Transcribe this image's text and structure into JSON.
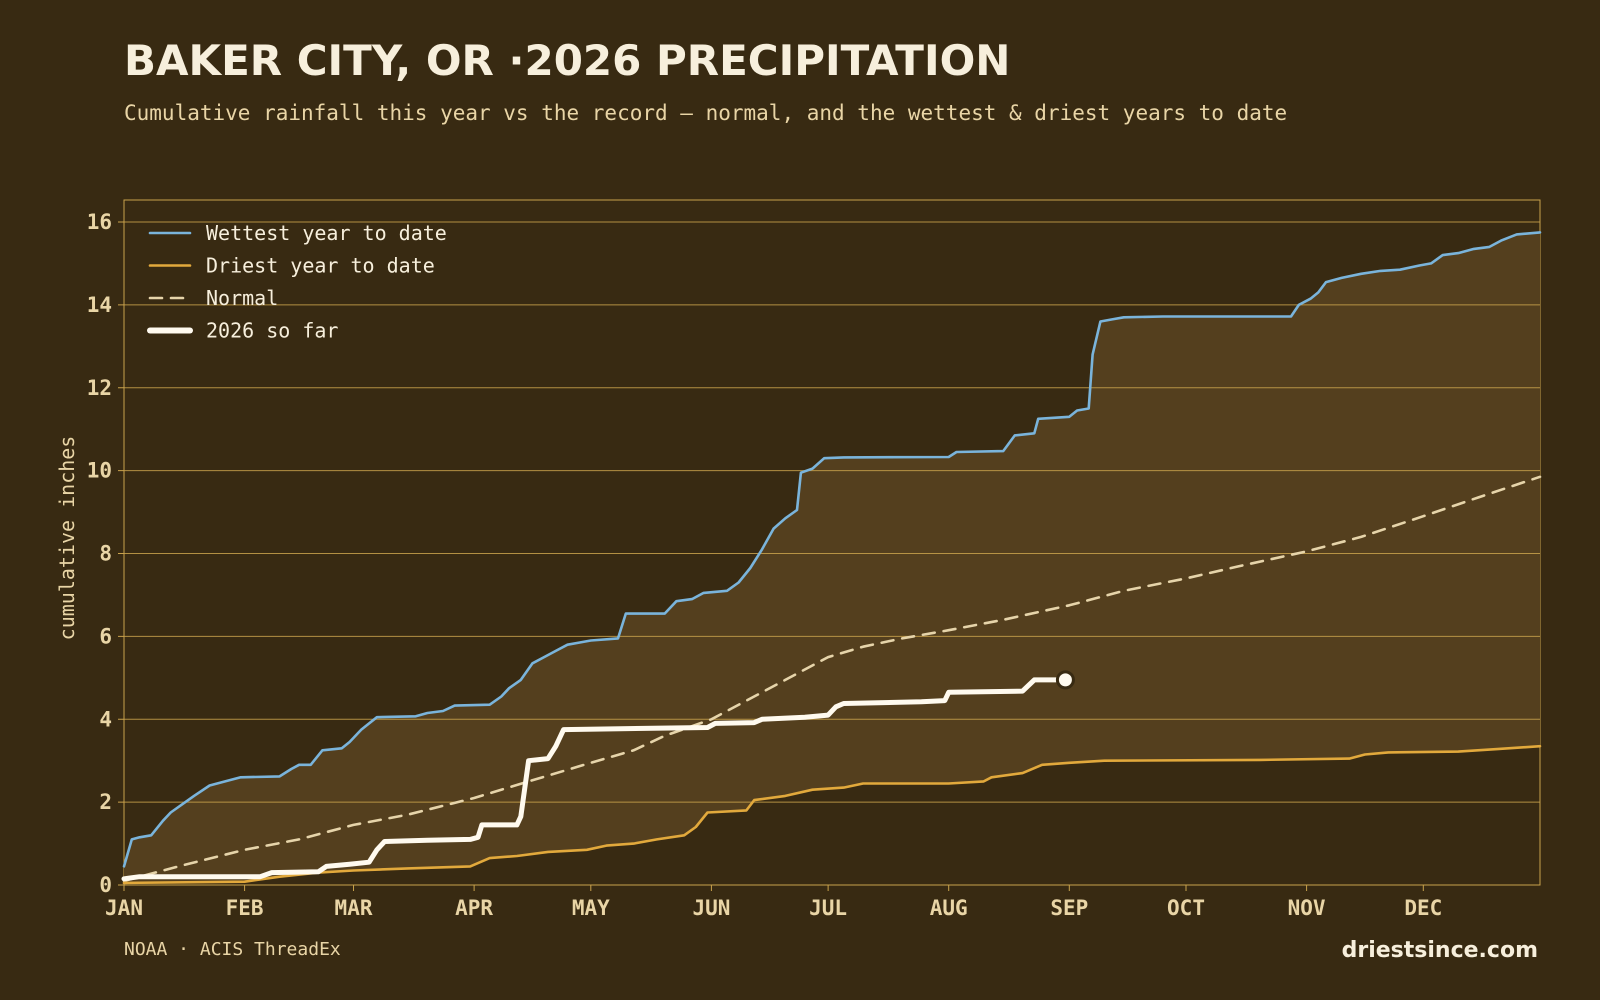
{
  "header": {
    "title": "BAKER CITY, OR ·2026 PRECIPITATION",
    "subtitle": "Cumulative rainfall this year vs the record — normal, and the wettest & driest years to date"
  },
  "footer": {
    "source": "NOAA · ACIS ThreadEx",
    "brand": "driestsince.com"
  },
  "colors": {
    "background": "#382a12",
    "band_fill": "#543f1e",
    "grid": "#c9a24c",
    "wettest": "#7ab4db",
    "driest": "#e2a93c",
    "normal": "#e6d4aa",
    "current": "#fffaef"
  },
  "chart_data": {
    "type": "line",
    "ylabel": "cumulative inches",
    "xlabel": "",
    "ylim": [
      0,
      16
    ],
    "yticks": [
      0,
      2,
      4,
      6,
      8,
      10,
      12,
      14,
      16
    ],
    "xlim": [
      "2026-01-01",
      "2026-12-31"
    ],
    "xticks": [
      {
        "label": "JAN",
        "date": "2026-01-01"
      },
      {
        "label": "FEB",
        "date": "2026-02-01"
      },
      {
        "label": "MAR",
        "date": "2026-03-01"
      },
      {
        "label": "APR",
        "date": "2026-04-01"
      },
      {
        "label": "MAY",
        "date": "2026-05-01"
      },
      {
        "label": "JUN",
        "date": "2026-06-01"
      },
      {
        "label": "JUL",
        "date": "2026-07-01"
      },
      {
        "label": "AUG",
        "date": "2026-08-01"
      },
      {
        "label": "SEP",
        "date": "2026-09-01"
      },
      {
        "label": "OCT",
        "date": "2026-10-01"
      },
      {
        "label": "NOV",
        "date": "2026-11-01"
      },
      {
        "label": "DEC",
        "date": "2026-12-01"
      }
    ],
    "grid": "horizontal",
    "legend_position": "top-left",
    "series": [
      {
        "name": "Wettest year to date",
        "color": "#7ab4db",
        "style": "solid",
        "points": [
          [
            "2026-01-01",
            0.45
          ],
          [
            "2026-01-03",
            1.1
          ],
          [
            "2026-01-05",
            1.15
          ],
          [
            "2026-01-08",
            1.2
          ],
          [
            "2026-01-11",
            1.55
          ],
          [
            "2026-01-13",
            1.75
          ],
          [
            "2026-01-16",
            1.95
          ],
          [
            "2026-01-19",
            2.15
          ],
          [
            "2026-01-23",
            2.4
          ],
          [
            "2026-01-27",
            2.5
          ],
          [
            "2026-01-31",
            2.6
          ],
          [
            "2026-02-10",
            2.62
          ],
          [
            "2026-02-13",
            2.8
          ],
          [
            "2026-02-15",
            2.9
          ],
          [
            "2026-02-18",
            2.9
          ],
          [
            "2026-02-21",
            3.25
          ],
          [
            "2026-02-26",
            3.3
          ],
          [
            "2026-02-28",
            3.45
          ],
          [
            "2026-03-03",
            3.75
          ],
          [
            "2026-03-07",
            4.05
          ],
          [
            "2026-03-17",
            4.07
          ],
          [
            "2026-03-20",
            4.15
          ],
          [
            "2026-03-24",
            4.2
          ],
          [
            "2026-03-27",
            4.33
          ],
          [
            "2026-04-05",
            4.35
          ],
          [
            "2026-04-08",
            4.55
          ],
          [
            "2026-04-10",
            4.75
          ],
          [
            "2026-04-13",
            4.95
          ],
          [
            "2026-04-16",
            5.35
          ],
          [
            "2026-04-19",
            5.5
          ],
          [
            "2026-04-22",
            5.65
          ],
          [
            "2026-04-25",
            5.8
          ],
          [
            "2026-04-28",
            5.85
          ],
          [
            "2026-05-01",
            5.9
          ],
          [
            "2026-05-08",
            5.95
          ],
          [
            "2026-05-10",
            6.55
          ],
          [
            "2026-05-20",
            6.55
          ],
          [
            "2026-05-23",
            6.85
          ],
          [
            "2026-05-27",
            6.9
          ],
          [
            "2026-05-30",
            7.05
          ],
          [
            "2026-06-05",
            7.1
          ],
          [
            "2026-06-08",
            7.3
          ],
          [
            "2026-06-11",
            7.65
          ],
          [
            "2026-06-14",
            8.1
          ],
          [
            "2026-06-17",
            8.6
          ],
          [
            "2026-06-20",
            8.85
          ],
          [
            "2026-06-23",
            9.05
          ],
          [
            "2026-06-24",
            9.95
          ],
          [
            "2026-06-27",
            10.05
          ],
          [
            "2026-06-30",
            10.3
          ],
          [
            "2026-07-05",
            10.32
          ],
          [
            "2026-08-01",
            10.33
          ],
          [
            "2026-08-03",
            10.45
          ],
          [
            "2026-08-15",
            10.47
          ],
          [
            "2026-08-18",
            10.85
          ],
          [
            "2026-08-23",
            10.9
          ],
          [
            "2026-08-24",
            11.25
          ],
          [
            "2026-09-01",
            11.3
          ],
          [
            "2026-09-03",
            11.45
          ],
          [
            "2026-09-06",
            11.5
          ],
          [
            "2026-09-07",
            12.8
          ],
          [
            "2026-09-09",
            13.6
          ],
          [
            "2026-09-12",
            13.65
          ],
          [
            "2026-09-15",
            13.7
          ],
          [
            "2026-09-25",
            13.72
          ],
          [
            "2026-10-28",
            13.72
          ],
          [
            "2026-10-30",
            14.0
          ],
          [
            "2026-11-02",
            14.15
          ],
          [
            "2026-11-04",
            14.3
          ],
          [
            "2026-11-06",
            14.55
          ],
          [
            "2026-11-10",
            14.65
          ],
          [
            "2026-11-15",
            14.75
          ],
          [
            "2026-11-20",
            14.82
          ],
          [
            "2026-11-25",
            14.85
          ],
          [
            "2026-11-30",
            14.95
          ],
          [
            "2026-12-03",
            15.0
          ],
          [
            "2026-12-06",
            15.2
          ],
          [
            "2026-12-10",
            15.25
          ],
          [
            "2026-12-14",
            15.35
          ],
          [
            "2026-12-18",
            15.4
          ],
          [
            "2026-12-21",
            15.55
          ],
          [
            "2026-12-25",
            15.7
          ],
          [
            "2026-12-31",
            15.75
          ]
        ]
      },
      {
        "name": "Driest year to date",
        "color": "#e2a93c",
        "style": "solid",
        "points": [
          [
            "2026-01-01",
            0.05
          ],
          [
            "2026-02-01",
            0.08
          ],
          [
            "2026-02-10",
            0.2
          ],
          [
            "2026-02-20",
            0.3
          ],
          [
            "2026-03-01",
            0.35
          ],
          [
            "2026-03-15",
            0.4
          ],
          [
            "2026-03-31",
            0.45
          ],
          [
            "2026-04-05",
            0.65
          ],
          [
            "2026-04-12",
            0.7
          ],
          [
            "2026-04-20",
            0.8
          ],
          [
            "2026-04-30",
            0.85
          ],
          [
            "2026-05-05",
            0.95
          ],
          [
            "2026-05-12",
            1.0
          ],
          [
            "2026-05-18",
            1.1
          ],
          [
            "2026-05-25",
            1.2
          ],
          [
            "2026-05-28",
            1.4
          ],
          [
            "2026-05-31",
            1.75
          ],
          [
            "2026-06-10",
            1.8
          ],
          [
            "2026-06-12",
            2.05
          ],
          [
            "2026-06-20",
            2.15
          ],
          [
            "2026-06-27",
            2.3
          ],
          [
            "2026-07-05",
            2.35
          ],
          [
            "2026-07-10",
            2.45
          ],
          [
            "2026-08-01",
            2.45
          ],
          [
            "2026-08-10",
            2.5
          ],
          [
            "2026-08-12",
            2.6
          ],
          [
            "2026-08-20",
            2.7
          ],
          [
            "2026-08-25",
            2.9
          ],
          [
            "2026-09-01",
            2.95
          ],
          [
            "2026-09-10",
            3.0
          ],
          [
            "2026-10-20",
            3.02
          ],
          [
            "2026-11-12",
            3.05
          ],
          [
            "2026-11-16",
            3.15
          ],
          [
            "2026-11-22",
            3.2
          ],
          [
            "2026-12-10",
            3.22
          ],
          [
            "2026-12-20",
            3.28
          ],
          [
            "2026-12-31",
            3.35
          ]
        ]
      },
      {
        "name": "Normal",
        "color": "#e6d4aa",
        "style": "dashed",
        "points": [
          [
            "2026-01-01",
            0.1
          ],
          [
            "2026-01-15",
            0.45
          ],
          [
            "2026-02-01",
            0.85
          ],
          [
            "2026-02-15",
            1.1
          ],
          [
            "2026-03-01",
            1.45
          ],
          [
            "2026-03-15",
            1.7
          ],
          [
            "2026-04-01",
            2.1
          ],
          [
            "2026-04-15",
            2.5
          ],
          [
            "2026-05-01",
            2.95
          ],
          [
            "2026-05-12",
            3.25
          ],
          [
            "2026-05-20",
            3.6
          ],
          [
            "2026-06-01",
            4.0
          ],
          [
            "2026-06-10",
            4.45
          ],
          [
            "2026-06-20",
            4.95
          ],
          [
            "2026-07-01",
            5.5
          ],
          [
            "2026-07-10",
            5.75
          ],
          [
            "2026-07-20",
            5.95
          ],
          [
            "2026-08-01",
            6.15
          ],
          [
            "2026-08-15",
            6.4
          ],
          [
            "2026-09-01",
            6.75
          ],
          [
            "2026-09-15",
            7.1
          ],
          [
            "2026-10-01",
            7.4
          ],
          [
            "2026-10-15",
            7.7
          ],
          [
            "2026-11-01",
            8.05
          ],
          [
            "2026-11-15",
            8.4
          ],
          [
            "2026-12-01",
            8.9
          ],
          [
            "2026-12-15",
            9.35
          ],
          [
            "2026-12-31",
            9.85
          ]
        ]
      },
      {
        "name": "2026 so far",
        "color": "#fffaef",
        "style": "bold",
        "points": [
          [
            "2026-01-01",
            0.15
          ],
          [
            "2026-01-05",
            0.2
          ],
          [
            "2026-02-05",
            0.2
          ],
          [
            "2026-02-08",
            0.3
          ],
          [
            "2026-02-20",
            0.32
          ],
          [
            "2026-02-22",
            0.45
          ],
          [
            "2026-02-28",
            0.5
          ],
          [
            "2026-03-05",
            0.55
          ],
          [
            "2026-03-07",
            0.85
          ],
          [
            "2026-03-09",
            1.05
          ],
          [
            "2026-03-20",
            1.08
          ],
          [
            "2026-03-31",
            1.1
          ],
          [
            "2026-04-02",
            1.15
          ],
          [
            "2026-04-03",
            1.45
          ],
          [
            "2026-04-12",
            1.45
          ],
          [
            "2026-04-13",
            1.65
          ],
          [
            "2026-04-15",
            3.0
          ],
          [
            "2026-04-20",
            3.05
          ],
          [
            "2026-04-22",
            3.35
          ],
          [
            "2026-04-24",
            3.75
          ],
          [
            "2026-05-31",
            3.8
          ],
          [
            "2026-06-02",
            3.9
          ],
          [
            "2026-06-12",
            3.92
          ],
          [
            "2026-06-14",
            4.0
          ],
          [
            "2026-06-25",
            4.05
          ],
          [
            "2026-07-01",
            4.1
          ],
          [
            "2026-07-03",
            4.3
          ],
          [
            "2026-07-05",
            4.38
          ],
          [
            "2026-07-25",
            4.42
          ],
          [
            "2026-07-31",
            4.45
          ],
          [
            "2026-08-01",
            4.65
          ],
          [
            "2026-08-20",
            4.68
          ],
          [
            "2026-08-23",
            4.95
          ],
          [
            "2026-08-31",
            4.95
          ]
        ]
      }
    ],
    "band": {
      "between": [
        "Driest year to date",
        "Wettest year to date"
      ],
      "color": "#543f1e"
    },
    "current_marker": {
      "date": "2026-08-31",
      "value": 4.95
    }
  }
}
